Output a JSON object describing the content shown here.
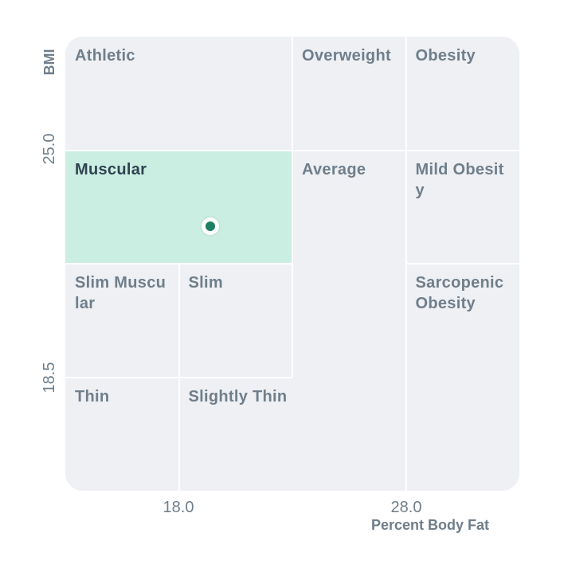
{
  "chart_data": {
    "type": "matrix",
    "xlabel": "Percent Body Fat",
    "ylabel": "BMI",
    "x_ticks": [
      "18.0",
      "28.0"
    ],
    "y_ticks": [
      "25.0",
      "18.5"
    ],
    "categories": [
      {
        "label": "Athletic",
        "active": false
      },
      {
        "label": "Overweight",
        "active": false
      },
      {
        "label": "Obesity",
        "active": false
      },
      {
        "label": "Muscular",
        "active": true
      },
      {
        "label": "Average",
        "active": false
      },
      {
        "label": "Mild Obesity",
        "active": false
      },
      {
        "label": "Slim Muscular",
        "active": false
      },
      {
        "label": "Slim",
        "active": false
      },
      {
        "label": "Sarcopenic Obesity",
        "active": false
      },
      {
        "label": "Thin",
        "active": false
      },
      {
        "label": "Slightly Thin",
        "active": false
      }
    ],
    "colors": {
      "cell": "#eef0f4",
      "active_cell": "#cbeee2",
      "marker": "#1e8063",
      "text": "#6f7e8a",
      "active_text": "#2f4350"
    }
  }
}
